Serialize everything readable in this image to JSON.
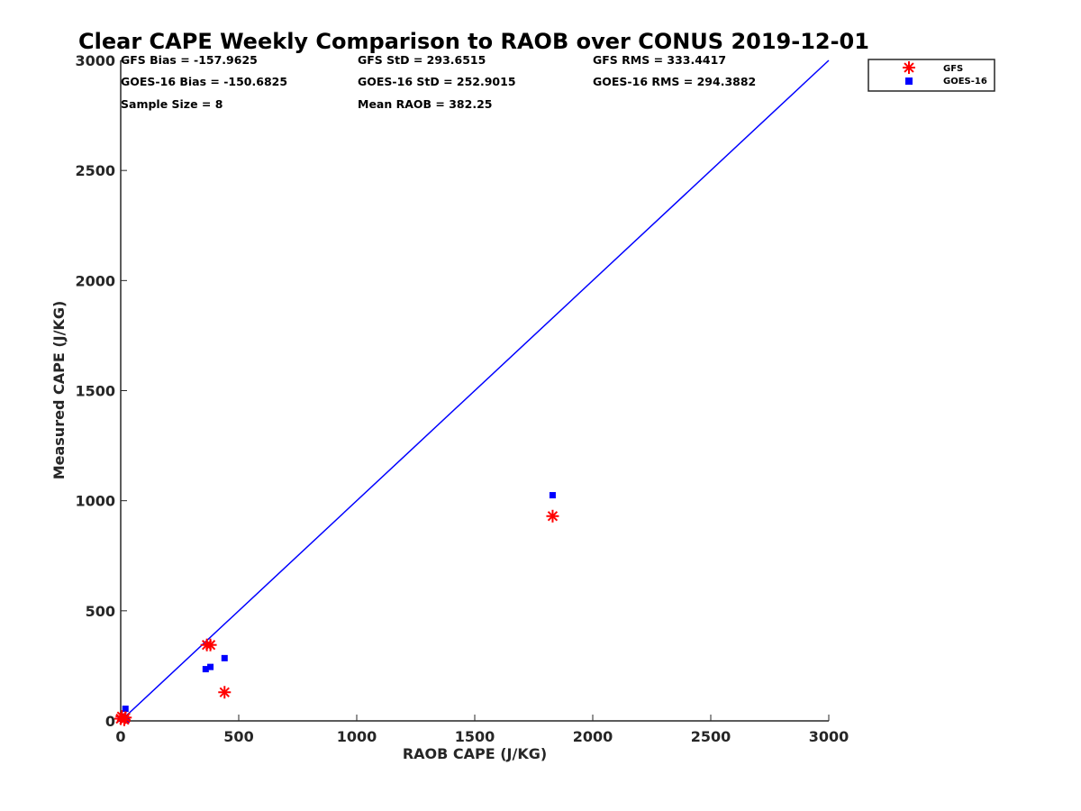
{
  "colors": {
    "gfs": "#ff0000",
    "goes": "#0000ff",
    "line": "#0000ff",
    "axis": "#262626"
  },
  "stats": {
    "gfs_bias": "GFS Bias = -157.9625",
    "gfs_std": "GFS StD = 293.6515",
    "gfs_rms": "GFS RMS = 333.4417",
    "goes_bias": "GOES-16 Bias = -150.6825",
    "goes_std": "GOES-16 StD = 252.9015",
    "goes_rms": "GOES-16 RMS = 294.3882",
    "sample_size": "Sample Size = 8",
    "mean_raob": "Mean RAOB = 382.25"
  },
  "chart_data": {
    "type": "scatter",
    "title": "Clear CAPE Weekly Comparison to RAOB over CONUS 2019-12-01",
    "xlabel": "RAOB CAPE (J/KG)",
    "ylabel": "Measured CAPE (J/KG)",
    "xlim": [
      0,
      3000
    ],
    "ylim": [
      0,
      3000
    ],
    "xticks": [
      "0",
      "500",
      "1000",
      "1500",
      "2000",
      "2500",
      "3000"
    ],
    "yticks": [
      "0",
      "500",
      "1000",
      "1500",
      "2000",
      "2500",
      "3000"
    ],
    "grid": false,
    "legend": "top-right",
    "reference_line": {
      "x": [
        0,
        3000
      ],
      "y": [
        0,
        3000
      ]
    },
    "series": [
      {
        "name": "GFS",
        "marker": "asterisk",
        "points": [
          [
            0,
            10
          ],
          [
            5,
            20
          ],
          [
            15,
            5
          ],
          [
            20,
            15
          ],
          [
            365,
            345
          ],
          [
            380,
            345
          ],
          [
            440,
            130
          ],
          [
            1830,
            930
          ]
        ]
      },
      {
        "name": "GOES-16",
        "marker": "square",
        "points": [
          [
            0,
            10
          ],
          [
            10,
            20
          ],
          [
            20,
            55
          ],
          [
            25,
            5
          ],
          [
            360,
            235
          ],
          [
            380,
            245
          ],
          [
            440,
            285
          ],
          [
            1830,
            1025
          ]
        ]
      }
    ]
  }
}
